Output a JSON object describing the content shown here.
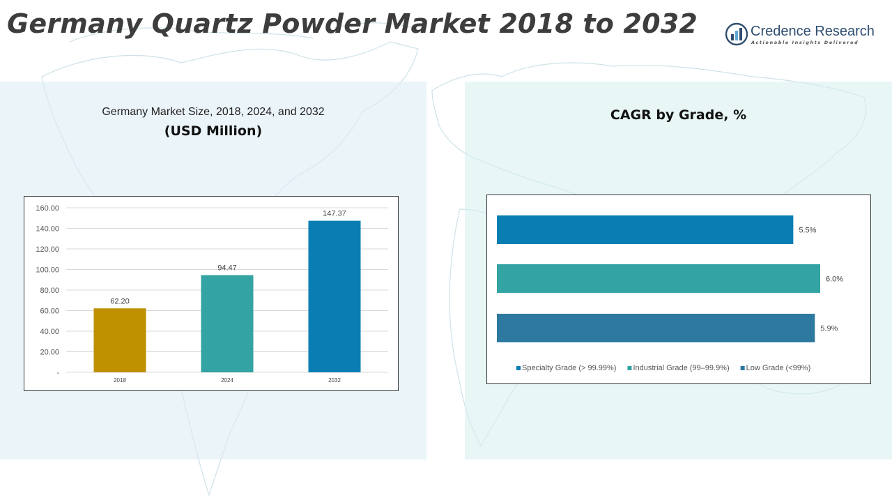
{
  "page": {
    "title": "Germany Quartz Powder Market 2018 to 2032"
  },
  "logo": {
    "name": "Credence Research",
    "tagline": "Actionable Insights Delivered",
    "icon": "bar-chart-circle-icon"
  },
  "colors": {
    "gold": "#BF9000",
    "teal": "#33A3A3",
    "blue": "#0A7EB3",
    "steel": "#2E79A0",
    "title": "#3D3D3D"
  },
  "chart_data": [
    {
      "type": "bar",
      "title": "Germany Market Size, 2018, 2024, and 2032",
      "subtitle": "(USD Million)",
      "categories": [
        "2018",
        "2024",
        "2032"
      ],
      "values": [
        62.2,
        94.47,
        147.37
      ],
      "value_labels": [
        "62.20",
        "94.47",
        "147.37"
      ],
      "bar_colors": [
        "#BF9000",
        "#33A3A3",
        "#0A7EB3"
      ],
      "yticks": [
        0,
        20,
        40,
        60,
        80,
        100,
        120,
        140,
        160
      ],
      "ytick_labels": [
        "-",
        "20.00",
        "40.00",
        "60.00",
        "80.00",
        "100.00",
        "120.00",
        "140.00",
        "160.00"
      ],
      "ylim": [
        0,
        160
      ],
      "grid": true,
      "legend": "none"
    },
    {
      "type": "bar",
      "orientation": "horizontal",
      "title": "CAGR by Grade, %",
      "series": [
        {
          "name": "Specialty Grade (> 99.99%)",
          "value": 5.5,
          "label": "5.5%",
          "color": "#0A7EB3"
        },
        {
          "name": "Industrial Grade (99–99.9%)",
          "value": 6.0,
          "label": "6.0%",
          "color": "#33A3A3"
        },
        {
          "name": "Low Grade (<99%)",
          "value": 5.9,
          "label": "5.9%",
          "color": "#2E79A0"
        }
      ],
      "xlim": [
        0,
        6.0
      ],
      "grid": false,
      "legend": "bottom"
    }
  ]
}
